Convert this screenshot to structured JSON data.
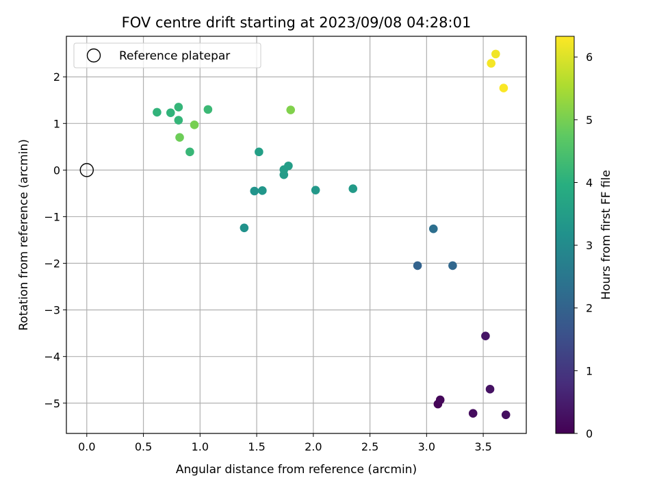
{
  "chart_data": {
    "type": "scatter",
    "title": "FOV centre drift starting at 2023/09/08 04:28:01",
    "xlabel": "Angular distance from reference (arcmin)",
    "ylabel": "Rotation from reference (arcmin)",
    "xlim": [
      -0.18,
      3.88
    ],
    "ylim": [
      -5.65,
      2.87
    ],
    "xticks": [
      0.0,
      0.5,
      1.0,
      1.5,
      2.0,
      2.5,
      3.0,
      3.5
    ],
    "xtick_labels": [
      "0.0",
      "0.5",
      "1.0",
      "1.5",
      "2.0",
      "2.5",
      "3.0",
      "3.5"
    ],
    "yticks": [
      2,
      1,
      0,
      -1,
      -2,
      -3,
      -4,
      -5
    ],
    "ytick_labels": [
      "2",
      "1",
      "0",
      "−1",
      "−2",
      "−3",
      "−4",
      "−5"
    ],
    "grid": true,
    "legend": {
      "placement": "top-left",
      "entries": [
        "Reference platepar"
      ]
    },
    "reference_point": {
      "x": 0.0,
      "y": 0.0
    },
    "colorbar": {
      "label": "Hours from first FF file",
      "range": [
        0,
        6.33
      ],
      "ticks": [
        0,
        1,
        2,
        3,
        4,
        5,
        6
      ],
      "tick_labels": [
        "0",
        "1",
        "2",
        "3",
        "4",
        "5",
        "6"
      ],
      "colormap": "viridis"
    },
    "points": [
      {
        "x": 3.1,
        "y": -5.02,
        "c": 0.05
      },
      {
        "x": 3.12,
        "y": -4.93,
        "c": 0.1
      },
      {
        "x": 3.41,
        "y": -5.22,
        "c": 0.2
      },
      {
        "x": 3.7,
        "y": -5.25,
        "c": 0.25
      },
      {
        "x": 3.56,
        "y": -4.7,
        "c": 0.3
      },
      {
        "x": 3.52,
        "y": -3.56,
        "c": 0.35
      },
      {
        "x": 2.92,
        "y": -2.05,
        "c": 2.0
      },
      {
        "x": 3.23,
        "y": -2.05,
        "c": 2.1
      },
      {
        "x": 3.06,
        "y": -1.26,
        "c": 2.3
      },
      {
        "x": 1.39,
        "y": -1.24,
        "c": 3.2
      },
      {
        "x": 1.48,
        "y": -0.45,
        "c": 3.25
      },
      {
        "x": 1.55,
        "y": -0.44,
        "c": 3.3
      },
      {
        "x": 2.02,
        "y": -0.43,
        "c": 3.35
      },
      {
        "x": 2.35,
        "y": -0.4,
        "c": 3.4
      },
      {
        "x": 1.74,
        "y": -0.1,
        "c": 3.45
      },
      {
        "x": 1.74,
        "y": 0.01,
        "c": 3.5
      },
      {
        "x": 1.78,
        "y": 0.09,
        "c": 3.5
      },
      {
        "x": 1.52,
        "y": 0.39,
        "c": 3.55
      },
      {
        "x": 0.62,
        "y": 1.24,
        "c": 4.1
      },
      {
        "x": 0.74,
        "y": 1.23,
        "c": 4.1
      },
      {
        "x": 0.81,
        "y": 1.35,
        "c": 4.15
      },
      {
        "x": 0.81,
        "y": 1.07,
        "c": 4.15
      },
      {
        "x": 0.91,
        "y": 0.39,
        "c": 4.2
      },
      {
        "x": 1.07,
        "y": 1.3,
        "c": 4.25
      },
      {
        "x": 0.82,
        "y": 0.7,
        "c": 4.9
      },
      {
        "x": 0.95,
        "y": 0.97,
        "c": 5.0
      },
      {
        "x": 1.8,
        "y": 1.29,
        "c": 5.1
      },
      {
        "x": 3.61,
        "y": 2.49,
        "c": 6.2
      },
      {
        "x": 3.57,
        "y": 2.29,
        "c": 6.25
      },
      {
        "x": 3.68,
        "y": 1.76,
        "c": 6.3
      }
    ]
  }
}
